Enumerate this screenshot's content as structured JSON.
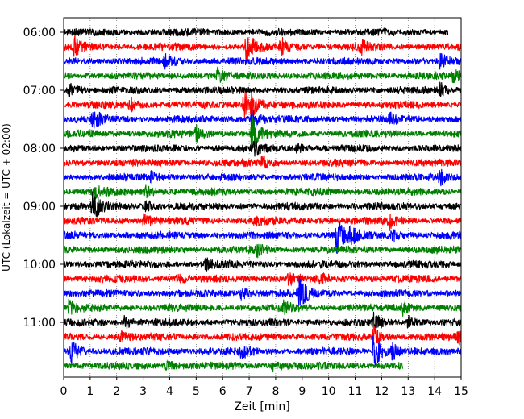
{
  "chart_data": {
    "type": "line",
    "chart_kind": "helicorder",
    "xlabel": "Zeit  [min]",
    "ylabel": "UTC (Lokalzeit = UTC + 02:00)",
    "xlim": [
      0,
      15
    ],
    "x_ticks": [
      "0",
      "1",
      "2",
      "3",
      "4",
      "5",
      "6",
      "7",
      "8",
      "9",
      "10",
      "11",
      "12",
      "13",
      "14",
      "15"
    ],
    "y_tick_labels": [
      "06:00",
      "07:00",
      "08:00",
      "09:00",
      "10:00",
      "11:00"
    ],
    "grid": {
      "vertical": true,
      "style": "dotted"
    },
    "colors": {
      "black": "#000000",
      "red": "#ff0000",
      "blue": "#0000ff",
      "green": "#008000"
    },
    "series": [
      {
        "start_time": "06:00",
        "color": "black",
        "end_minute": 14.5,
        "events": [
          {
            "minute": 14.9,
            "amp": 0.2
          }
        ]
      },
      {
        "start_time": "06:15",
        "color": "red",
        "end_minute": 15,
        "events": [
          {
            "minute": 0.4,
            "amp": 0.8
          },
          {
            "minute": 6.9,
            "amp": 1.5
          },
          {
            "minute": 8.2,
            "amp": 0.7
          },
          {
            "minute": 11.2,
            "amp": 0.6
          }
        ]
      },
      {
        "start_time": "06:30",
        "color": "blue",
        "end_minute": 15,
        "events": [
          {
            "minute": 3.8,
            "amp": 0.5
          },
          {
            "minute": 14.2,
            "amp": 0.6
          }
        ]
      },
      {
        "start_time": "06:45",
        "color": "green",
        "end_minute": 15,
        "events": [
          {
            "minute": 5.8,
            "amp": 0.6
          },
          {
            "minute": 14.7,
            "amp": 0.5
          }
        ]
      },
      {
        "start_time": "07:00",
        "color": "black",
        "end_minute": 15,
        "events": [
          {
            "minute": 0.2,
            "amp": 0.7
          },
          {
            "minute": 14.2,
            "amp": 0.6
          }
        ]
      },
      {
        "start_time": "07:15",
        "color": "red",
        "end_minute": 15,
        "events": [
          {
            "minute": 6.8,
            "amp": 1.2
          },
          {
            "minute": 7.1,
            "amp": 0.9
          },
          {
            "minute": 2.5,
            "amp": 0.5
          }
        ]
      },
      {
        "start_time": "07:30",
        "color": "blue",
        "end_minute": 15,
        "events": [
          {
            "minute": 1.1,
            "amp": 1.0
          },
          {
            "minute": 7.1,
            "amp": 0.9
          },
          {
            "minute": 12.3,
            "amp": 0.5
          }
        ]
      },
      {
        "start_time": "07:45",
        "color": "green",
        "end_minute": 15,
        "events": [
          {
            "minute": 7.1,
            "amp": 1.6
          },
          {
            "minute": 5.0,
            "amp": 0.6
          }
        ]
      },
      {
        "start_time": "08:00",
        "color": "black",
        "end_minute": 15,
        "events": [
          {
            "minute": 7.2,
            "amp": 0.5
          },
          {
            "minute": 8.8,
            "amp": 0.4
          }
        ]
      },
      {
        "start_time": "08:15",
        "color": "red",
        "end_minute": 15,
        "events": [
          {
            "minute": 7.5,
            "amp": 0.5
          }
        ]
      },
      {
        "start_time": "08:30",
        "color": "blue",
        "end_minute": 15,
        "events": [
          {
            "minute": 14.2,
            "amp": 0.8
          },
          {
            "minute": 3.3,
            "amp": 0.4
          }
        ]
      },
      {
        "start_time": "08:45",
        "color": "green",
        "end_minute": 15,
        "events": [
          {
            "minute": 1.2,
            "amp": 0.5
          },
          {
            "minute": 3.1,
            "amp": 0.5
          }
        ]
      },
      {
        "start_time": "09:00",
        "color": "black",
        "end_minute": 15,
        "events": [
          {
            "minute": 1.1,
            "amp": 1.2
          },
          {
            "minute": 3.1,
            "amp": 0.5
          }
        ]
      },
      {
        "start_time": "09:15",
        "color": "red",
        "end_minute": 15,
        "events": [
          {
            "minute": 3.0,
            "amp": 0.6
          },
          {
            "minute": 12.3,
            "amp": 0.6
          },
          {
            "minute": 7.2,
            "amp": 0.4
          }
        ]
      },
      {
        "start_time": "09:30",
        "color": "blue",
        "end_minute": 15,
        "events": [
          {
            "minute": 10.3,
            "amp": 1.8
          },
          {
            "minute": 10.8,
            "amp": 0.8
          },
          {
            "minute": 12.4,
            "amp": 0.5
          }
        ]
      },
      {
        "start_time": "09:45",
        "color": "green",
        "end_minute": 15,
        "events": [
          {
            "minute": 7.3,
            "amp": 0.5
          }
        ]
      },
      {
        "start_time": "10:00",
        "color": "black",
        "end_minute": 15,
        "events": [
          {
            "minute": 5.3,
            "amp": 0.5
          }
        ]
      },
      {
        "start_time": "10:15",
        "color": "red",
        "end_minute": 15,
        "events": [
          {
            "minute": 8.5,
            "amp": 0.5
          },
          {
            "minute": 4.3,
            "amp": 0.4
          },
          {
            "minute": 9.7,
            "amp": 0.4
          }
        ]
      },
      {
        "start_time": "10:30",
        "color": "blue",
        "end_minute": 15,
        "events": [
          {
            "minute": 8.9,
            "amp": 1.5
          },
          {
            "minute": 6.7,
            "amp": 0.5
          }
        ]
      },
      {
        "start_time": "10:45",
        "color": "green",
        "end_minute": 15,
        "events": [
          {
            "minute": 0.2,
            "amp": 0.6
          },
          {
            "minute": 8.3,
            "amp": 0.5
          },
          {
            "minute": 12.8,
            "amp": 0.5
          }
        ]
      },
      {
        "start_time": "11:00",
        "color": "black",
        "end_minute": 15,
        "events": [
          {
            "minute": 2.3,
            "amp": 0.5
          },
          {
            "minute": 11.7,
            "amp": 0.7
          },
          {
            "minute": 13.0,
            "amp": 0.5
          }
        ]
      },
      {
        "start_time": "11:15",
        "color": "red",
        "end_minute": 15,
        "events": [
          {
            "minute": 2.1,
            "amp": 0.5
          },
          {
            "minute": 11.7,
            "amp": 0.9
          },
          {
            "minute": 14.9,
            "amp": 0.6
          }
        ]
      },
      {
        "start_time": "11:30",
        "color": "blue",
        "end_minute": 15,
        "events": [
          {
            "minute": 0.3,
            "amp": 1.0
          },
          {
            "minute": 11.7,
            "amp": 1.8
          },
          {
            "minute": 6.7,
            "amp": 0.6
          },
          {
            "minute": 12.4,
            "amp": 0.7
          }
        ]
      },
      {
        "start_time": "11:45",
        "color": "green",
        "end_minute": 12.8,
        "events": [
          {
            "minute": 3.9,
            "amp": 0.5
          },
          {
            "minute": 7.9,
            "amp": 0.4
          }
        ]
      }
    ]
  }
}
